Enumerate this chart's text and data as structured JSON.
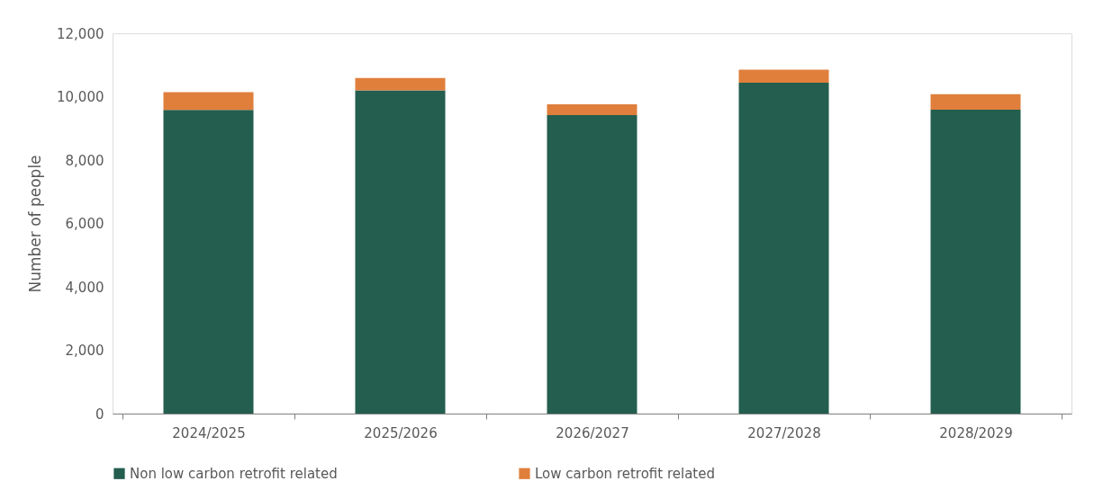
{
  "chart_data": {
    "type": "bar",
    "stacked": true,
    "ylabel": "Number of people",
    "categories": [
      "2024/2025",
      "2025/2026",
      "2026/2027",
      "2027/2028",
      "2028/2029"
    ],
    "series": [
      {
        "name": "Non low carbon retrofit related",
        "color": "#235e4f",
        "values": [
          9580,
          10200,
          9420,
          10440,
          9590
        ]
      },
      {
        "name": "Low carbon retrofit related",
        "color": "#e07f3c",
        "values": [
          560,
          390,
          340,
          410,
          490
        ]
      }
    ],
    "ylim": [
      0,
      12000
    ],
    "yticks": [
      0,
      {
        "value": 2000,
        "label": "2,000"
      },
      {
        "value": 4000,
        "label": "4,000"
      },
      {
        "value": 6000,
        "label": "6,000"
      },
      {
        "value": 8000,
        "label": "8,000"
      },
      {
        "value": 10000,
        "label": "10,000"
      },
      {
        "value": 12000,
        "label": "12,000"
      }
    ],
    "grid": false,
    "legend": "bottom"
  }
}
